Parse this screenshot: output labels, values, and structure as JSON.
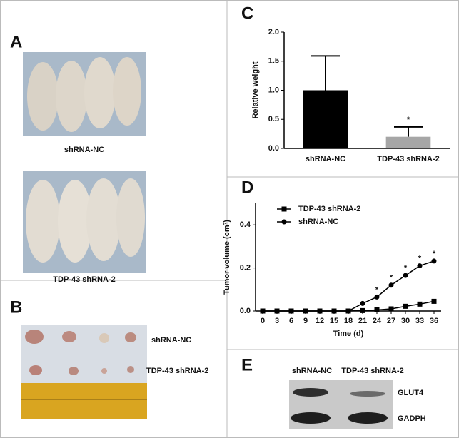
{
  "panel_a": {
    "label": "A",
    "captions": [
      "shRNA-NC",
      "TDP-43 shRNA-2"
    ]
  },
  "panel_b": {
    "label": "B",
    "captions": [
      "shRNA-NC",
      "TDP-43 shRNA-2"
    ]
  },
  "panel_e": {
    "label": "E",
    "columns": [
      "shRNA-NC",
      "TDP-43 shRNA-2"
    ],
    "rows": [
      "GLUT4",
      "GADPH"
    ]
  },
  "chart_data": [
    {
      "type": "bar",
      "label": "C",
      "ylabel": "Relative weight",
      "categories": [
        "shRNA-NC",
        "TDP-43 shRNA-2"
      ],
      "values": [
        1.0,
        0.2
      ],
      "errors": [
        0.59,
        0.17
      ],
      "colors": [
        "#000000",
        "#a6a6a6"
      ],
      "significance": [
        null,
        "*"
      ],
      "ylim": [
        0,
        2
      ],
      "yticks": [
        {
          "value": 0,
          "label": "0.0"
        },
        0.5,
        {
          "value": 1,
          "label": "1.0"
        },
        1.5,
        {
          "value": 2,
          "label": "2.0"
        }
      ]
    },
    {
      "type": "line",
      "label": "D",
      "ylabel": "Tumor volume (cm³)",
      "xlabel": "Time (d)",
      "x": [
        0,
        3,
        6,
        9,
        12,
        15,
        18,
        21,
        24,
        27,
        30,
        33,
        36
      ],
      "series": [
        {
          "name": "TDP-43 shRNA-2",
          "color": "#000000",
          "marker": "square",
          "values": [
            0,
            0,
            0,
            0,
            0,
            0,
            0,
            0.002,
            0.005,
            0.01,
            0.022,
            0.032,
            0.045
          ]
        },
        {
          "name": "shRNA-NC",
          "color": "#000000",
          "marker": "circle",
          "values": [
            0,
            0,
            0,
            0,
            0,
            0,
            0,
            0.035,
            0.065,
            0.12,
            0.165,
            0.21,
            0.232
          ]
        }
      ],
      "significance": [
        null,
        null,
        null,
        null,
        null,
        null,
        null,
        null,
        "*",
        "*",
        "*",
        "*",
        "*"
      ],
      "xlim": [
        -1.5,
        37.5
      ],
      "xticks": [
        0,
        3,
        6,
        9,
        12,
        15,
        18,
        21,
        24,
        27,
        30,
        33,
        36
      ],
      "ylim": [
        0,
        0.5
      ],
      "yticks": [
        {
          "value": 0,
          "label": "0.0"
        },
        0.2,
        0.4
      ]
    }
  ]
}
